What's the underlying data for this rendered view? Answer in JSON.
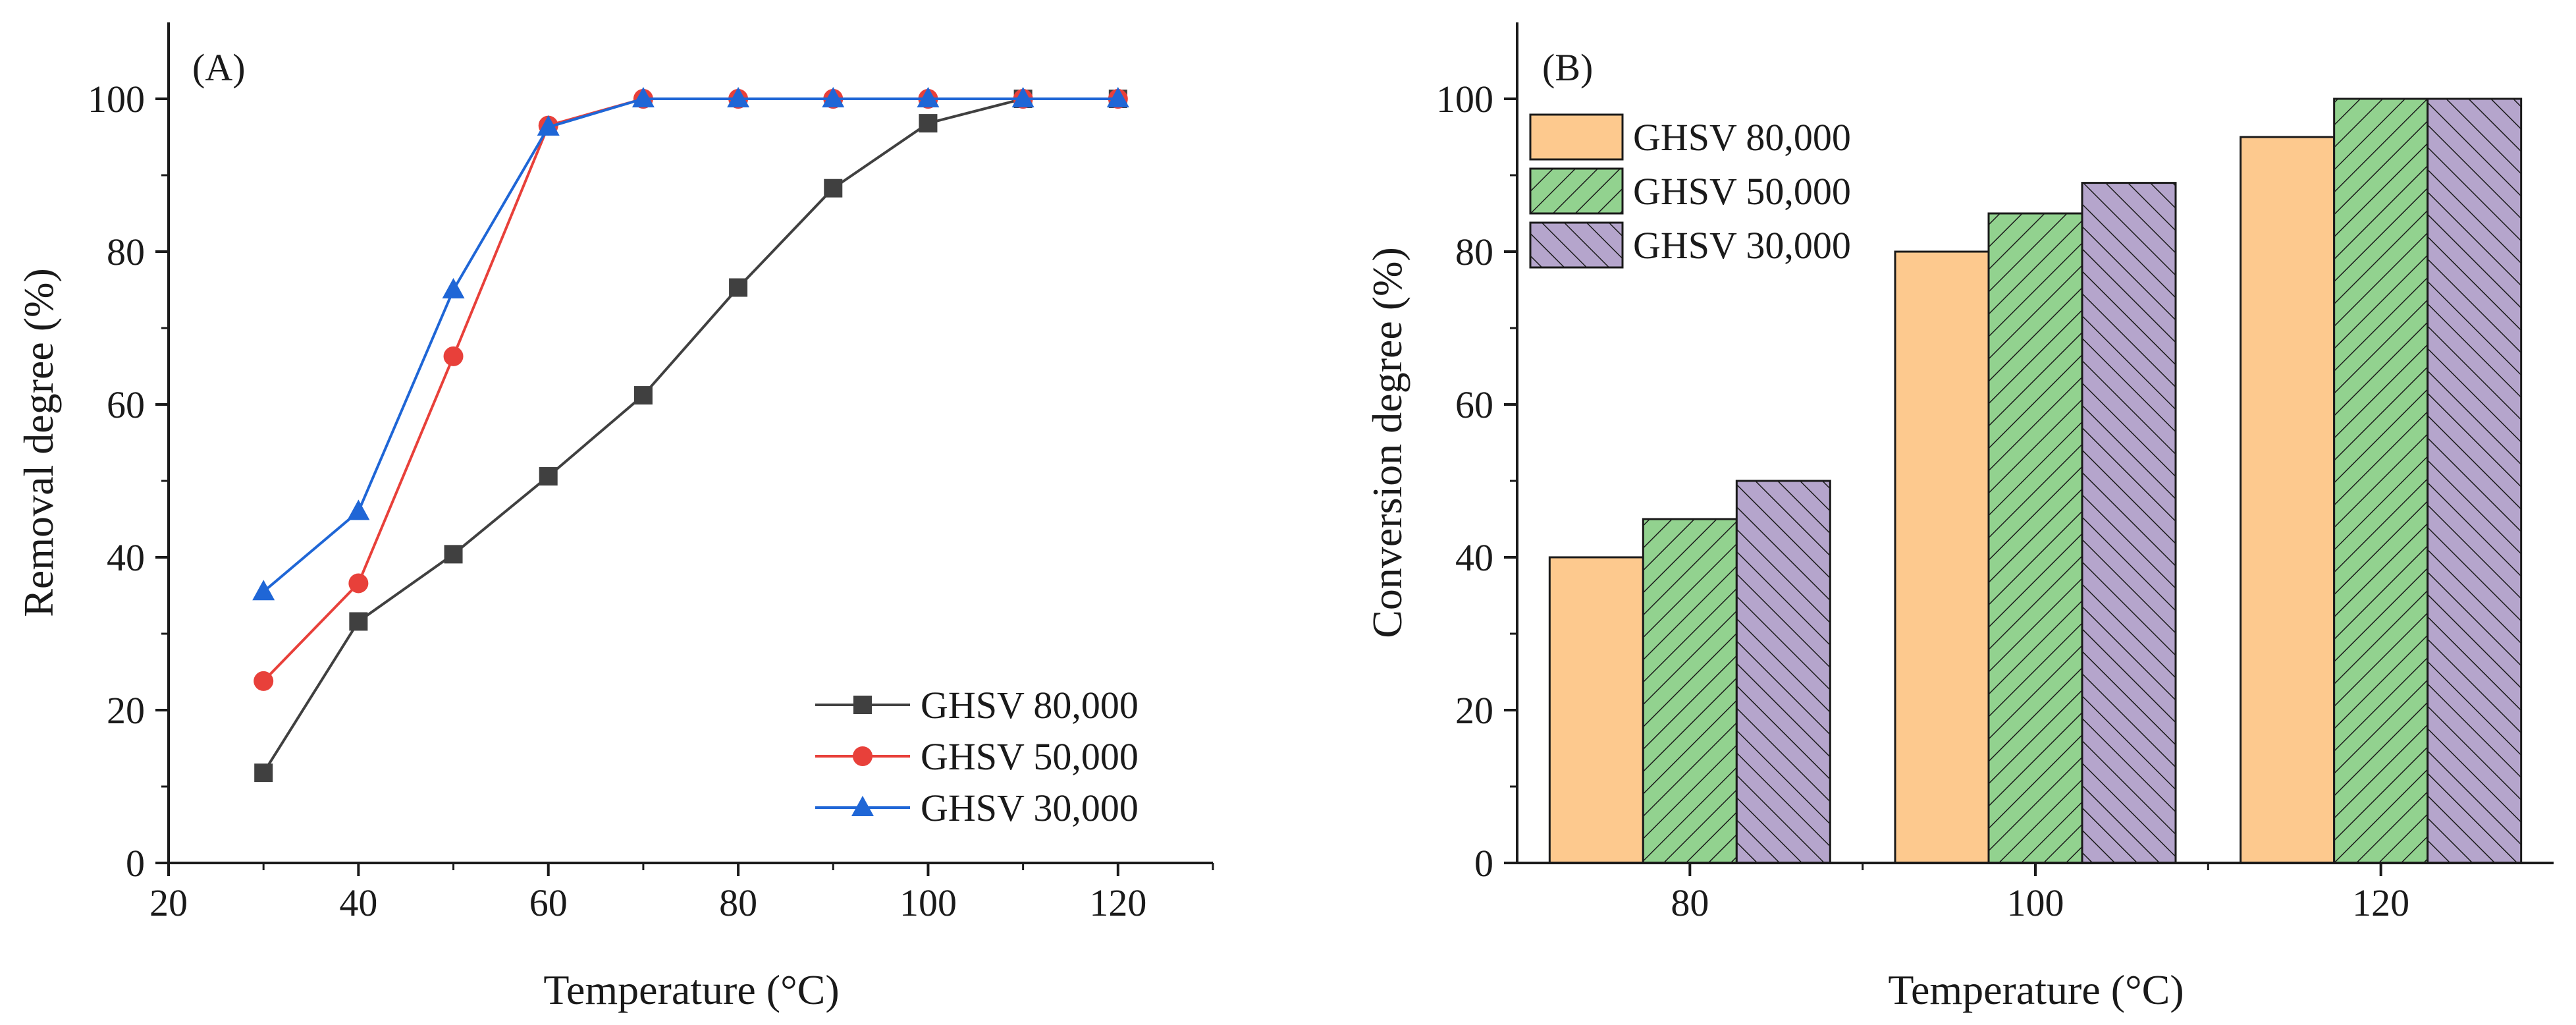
{
  "chart_data": [
    {
      "type": "line",
      "panel": "(A)",
      "xlabel": "Temperature (°C)",
      "ylabel": "Removal degree (%)",
      "xlim": [
        20,
        130
      ],
      "ylim": [
        0,
        110
      ],
      "xticks": [
        20,
        40,
        60,
        80,
        100,
        120
      ],
      "xtick_labels": [
        "20",
        "40",
        "60",
        "80",
        "100",
        "120"
      ],
      "yticks": [
        0,
        20,
        40,
        60,
        80,
        100
      ],
      "ytick_labels": [
        "0",
        "20",
        "40",
        "60",
        "80",
        "100"
      ],
      "legend_position": "bottom-right",
      "series": [
        {
          "name": "GHSV 80,000",
          "color": "#404040",
          "marker": "square",
          "x": [
            30,
            40,
            50,
            60,
            70,
            80,
            90,
            100,
            110,
            120
          ],
          "y": [
            11.8,
            31.6,
            40.4,
            50.6,
            61.2,
            75.3,
            88.3,
            96.8,
            100,
            100
          ]
        },
        {
          "name": "GHSV 50,000",
          "color": "#e8403a",
          "marker": "circle",
          "x": [
            30,
            40,
            50,
            60,
            70,
            80,
            90,
            100,
            110,
            120
          ],
          "y": [
            23.8,
            36.6,
            66.3,
            96.5,
            100,
            100,
            100,
            100,
            100,
            100
          ]
        },
        {
          "name": "GHSV 30,000",
          "color": "#1f66d6",
          "marker": "triangle",
          "x": [
            30,
            40,
            50,
            60,
            70,
            80,
            90,
            100,
            110,
            120
          ],
          "y": [
            35.5,
            46,
            75,
            96.3,
            100,
            100,
            100,
            100,
            100,
            100
          ]
        }
      ]
    },
    {
      "type": "bar",
      "panel": "(B)",
      "xlabel": "Temperature (°C)",
      "ylabel": "Conversion degree (%)",
      "ylim": [
        0,
        110
      ],
      "yticks": [
        0,
        20,
        40,
        60,
        80,
        100
      ],
      "ytick_labels": [
        "0",
        "20",
        "40",
        "60",
        "80",
        "100"
      ],
      "categories": [
        "80",
        "100",
        "120"
      ],
      "legend_position": "top-left",
      "series": [
        {
          "name": "GHSV 80,000",
          "color": "#fdc98e",
          "pattern": "solid",
          "values": [
            40,
            80,
            95
          ]
        },
        {
          "name": "GHSV 50,000",
          "color": "#92d28f",
          "pattern": "hatch-right",
          "values": [
            45,
            85,
            100
          ]
        },
        {
          "name": "GHSV 30,000",
          "color": "#b5a5cc",
          "pattern": "hatch-left",
          "values": [
            50,
            89,
            100
          ]
        }
      ]
    }
  ]
}
